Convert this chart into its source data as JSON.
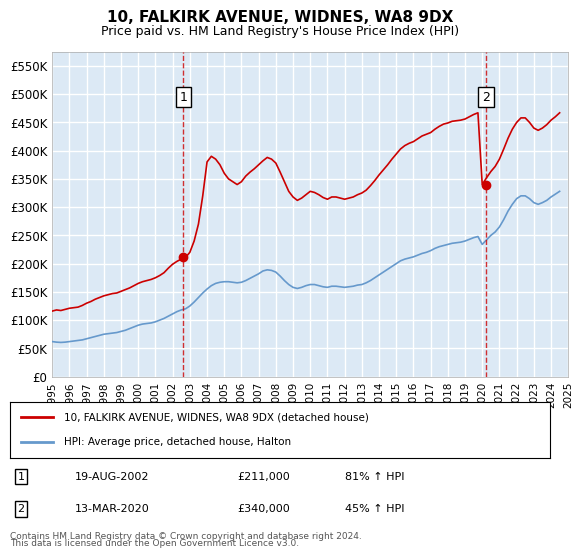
{
  "title": "10, FALKIRK AVENUE, WIDNES, WA8 9DX",
  "subtitle": "Price paid vs. HM Land Registry's House Price Index (HPI)",
  "ylabel": "",
  "xlabel": "",
  "ylim": [
    0,
    575000
  ],
  "yticks": [
    0,
    50000,
    100000,
    150000,
    200000,
    250000,
    300000,
    350000,
    400000,
    450000,
    500000,
    550000
  ],
  "ytick_labels": [
    "£0",
    "£50K",
    "£100K",
    "£150K",
    "£200K",
    "£250K",
    "£300K",
    "£350K",
    "£400K",
    "£450K",
    "£500K",
    "£550K"
  ],
  "background_color": "#dce9f5",
  "plot_background": "#dce9f5",
  "grid_color": "#ffffff",
  "red_line_color": "#cc0000",
  "blue_line_color": "#6699cc",
  "sale1_date": "2002-08-19",
  "sale1_price": 211000,
  "sale1_label": "1",
  "sale2_date": "2020-03-13",
  "sale2_price": 340000,
  "sale2_label": "2",
  "legend_entry1": "10, FALKIRK AVENUE, WIDNES, WA8 9DX (detached house)",
  "legend_entry2": "HPI: Average price, detached house, Halton",
  "annotation1_text": "1     19-AUG-2002          £211,000          81% ↑ HPI",
  "annotation2_text": "2     13-MAR-2020          £340,000          45% ↑ HPI",
  "footer1": "Contains HM Land Registry data © Crown copyright and database right 2024.",
  "footer2": "This data is licensed under the Open Government Licence v3.0.",
  "hpi_years": [
    1995.0,
    1995.25,
    1995.5,
    1995.75,
    1996.0,
    1996.25,
    1996.5,
    1996.75,
    1997.0,
    1997.25,
    1997.5,
    1997.75,
    1998.0,
    1998.25,
    1998.5,
    1998.75,
    1999.0,
    1999.25,
    1999.5,
    1999.75,
    2000.0,
    2000.25,
    2000.5,
    2000.75,
    2001.0,
    2001.25,
    2001.5,
    2001.75,
    2002.0,
    2002.25,
    2002.5,
    2002.75,
    2003.0,
    2003.25,
    2003.5,
    2003.75,
    2004.0,
    2004.25,
    2004.5,
    2004.75,
    2005.0,
    2005.25,
    2005.5,
    2005.75,
    2006.0,
    2006.25,
    2006.5,
    2006.75,
    2007.0,
    2007.25,
    2007.5,
    2007.75,
    2008.0,
    2008.25,
    2008.5,
    2008.75,
    2009.0,
    2009.25,
    2009.5,
    2009.75,
    2010.0,
    2010.25,
    2010.5,
    2010.75,
    2011.0,
    2011.25,
    2011.5,
    2011.75,
    2012.0,
    2012.25,
    2012.5,
    2012.75,
    2013.0,
    2013.25,
    2013.5,
    2013.75,
    2014.0,
    2014.25,
    2014.5,
    2014.75,
    2015.0,
    2015.25,
    2015.5,
    2015.75,
    2016.0,
    2016.25,
    2016.5,
    2016.75,
    2017.0,
    2017.25,
    2017.5,
    2017.75,
    2018.0,
    2018.25,
    2018.5,
    2018.75,
    2019.0,
    2019.25,
    2019.5,
    2019.75,
    2020.0,
    2020.25,
    2020.5,
    2020.75,
    2021.0,
    2021.25,
    2021.5,
    2021.75,
    2022.0,
    2022.25,
    2022.5,
    2022.75,
    2023.0,
    2023.25,
    2023.5,
    2023.75,
    2024.0,
    2024.25,
    2024.5
  ],
  "hpi_values": [
    62000,
    61000,
    60500,
    61000,
    62000,
    63000,
    64000,
    65000,
    67000,
    69000,
    71000,
    73000,
    75000,
    76000,
    77000,
    78000,
    80000,
    82000,
    85000,
    88000,
    91000,
    93000,
    94000,
    95000,
    97000,
    100000,
    103000,
    107000,
    111000,
    115000,
    118000,
    120000,
    125000,
    132000,
    140000,
    148000,
    155000,
    161000,
    165000,
    167000,
    168000,
    168000,
    167000,
    166000,
    167000,
    170000,
    174000,
    178000,
    182000,
    187000,
    189000,
    188000,
    185000,
    178000,
    170000,
    163000,
    158000,
    156000,
    158000,
    161000,
    163000,
    163000,
    161000,
    159000,
    158000,
    160000,
    160000,
    159000,
    158000,
    159000,
    160000,
    162000,
    163000,
    166000,
    170000,
    175000,
    180000,
    185000,
    190000,
    195000,
    200000,
    205000,
    208000,
    210000,
    212000,
    215000,
    218000,
    220000,
    223000,
    227000,
    230000,
    232000,
    234000,
    236000,
    237000,
    238000,
    240000,
    243000,
    246000,
    248000,
    234000,
    242000,
    250000,
    256000,
    265000,
    278000,
    293000,
    305000,
    315000,
    320000,
    320000,
    315000,
    308000,
    305000,
    308000,
    312000,
    318000,
    323000,
    328000
  ],
  "red_years": [
    1995.0,
    1995.25,
    1995.5,
    1995.75,
    1996.0,
    1996.25,
    1996.5,
    1996.75,
    1997.0,
    1997.25,
    1997.5,
    1997.75,
    1998.0,
    1998.25,
    1998.5,
    1998.75,
    1999.0,
    1999.25,
    1999.5,
    1999.75,
    2000.0,
    2000.25,
    2000.5,
    2000.75,
    2001.0,
    2001.25,
    2001.5,
    2001.75,
    2002.0,
    2002.25,
    2002.5,
    2002.75,
    2003.0,
    2003.25,
    2003.5,
    2003.75,
    2004.0,
    2004.25,
    2004.5,
    2004.75,
    2005.0,
    2005.25,
    2005.5,
    2005.75,
    2006.0,
    2006.25,
    2006.5,
    2006.75,
    2007.0,
    2007.25,
    2007.5,
    2007.75,
    2008.0,
    2008.25,
    2008.5,
    2008.75,
    2009.0,
    2009.25,
    2009.5,
    2009.75,
    2010.0,
    2010.25,
    2010.5,
    2010.75,
    2011.0,
    2011.25,
    2011.5,
    2011.75,
    2012.0,
    2012.25,
    2012.5,
    2012.75,
    2013.0,
    2013.25,
    2013.5,
    2013.75,
    2014.0,
    2014.25,
    2014.5,
    2014.75,
    2015.0,
    2015.25,
    2015.5,
    2015.75,
    2016.0,
    2016.25,
    2016.5,
    2016.75,
    2017.0,
    2017.25,
    2017.5,
    2017.75,
    2018.0,
    2018.25,
    2018.5,
    2018.75,
    2019.0,
    2019.25,
    2019.5,
    2019.75,
    2020.0,
    2020.25,
    2020.5,
    2020.75,
    2021.0,
    2021.25,
    2021.5,
    2021.75,
    2022.0,
    2022.25,
    2022.5,
    2022.75,
    2023.0,
    2023.25,
    2023.5,
    2023.75,
    2024.0,
    2024.25,
    2024.5
  ],
  "red_values": [
    116000,
    118000,
    117000,
    119000,
    121000,
    122000,
    123000,
    126000,
    130000,
    133000,
    137000,
    140000,
    143000,
    145000,
    147000,
    148000,
    151000,
    154000,
    157000,
    161000,
    165000,
    168000,
    170000,
    172000,
    175000,
    179000,
    184000,
    192000,
    199000,
    204000,
    208000,
    211000,
    220000,
    240000,
    270000,
    320000,
    380000,
    390000,
    385000,
    375000,
    360000,
    350000,
    345000,
    340000,
    345000,
    355000,
    362000,
    368000,
    375000,
    382000,
    388000,
    385000,
    378000,
    362000,
    345000,
    328000,
    318000,
    312000,
    316000,
    322000,
    328000,
    326000,
    322000,
    317000,
    314000,
    318000,
    318000,
    316000,
    314000,
    316000,
    318000,
    322000,
    325000,
    330000,
    338000,
    347000,
    357000,
    366000,
    375000,
    385000,
    394000,
    403000,
    409000,
    413000,
    416000,
    421000,
    426000,
    429000,
    432000,
    438000,
    443000,
    447000,
    449000,
    452000,
    453000,
    454000,
    456000,
    460000,
    464000,
    467000,
    340000,
    352000,
    363000,
    372000,
    385000,
    403000,
    422000,
    438000,
    450000,
    458000,
    458000,
    450000,
    440000,
    436000,
    440000,
    446000,
    454000,
    460000,
    467000
  ],
  "xtick_years": [
    1995,
    1996,
    1997,
    1998,
    1999,
    2000,
    2001,
    2002,
    2003,
    2004,
    2005,
    2006,
    2007,
    2008,
    2009,
    2010,
    2011,
    2012,
    2013,
    2014,
    2015,
    2016,
    2017,
    2018,
    2019,
    2020,
    2021,
    2022,
    2023,
    2024,
    2025
  ]
}
